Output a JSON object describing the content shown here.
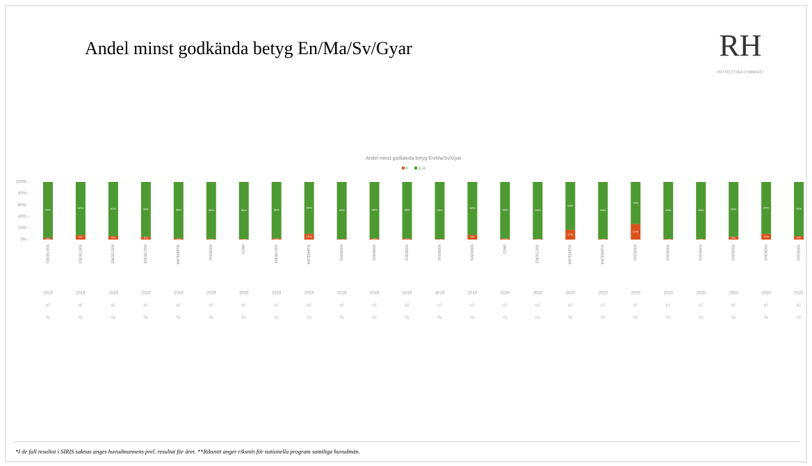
{
  "header": {
    "title": "Andel minst godkända betyg En/Ma/Sv/Gyar",
    "logo": "RH",
    "logo_sub": "HVITFELDTSKA GYMNASIET"
  },
  "chart_data": {
    "type": "stacked_bar",
    "title": "Andel minst godkända betyg En/Ma/Sv/Gyar",
    "categories": [
      "ENGELSKA",
      "ENGELSKA",
      "ENGELSKA",
      "ENGELSKA",
      "MATEMATIK",
      "SVENSKA",
      "GYAR",
      "ENGELSKA",
      "MATEMATIK",
      "SVENSKA",
      "SVENSKA",
      "SVENSKA",
      "SVENSKA",
      "SVENSKA",
      "GYAR",
      "ENGELSKA",
      "MATEMATIK",
      "MATEMATIK",
      "SVENSKA",
      "SVENSKA",
      "SVENSKA",
      "SVENSKA",
      "SVENSKA",
      "SVENSKA"
    ],
    "years": [
      "2019",
      "2019",
      "2019",
      "2019",
      "2019",
      "2019",
      "2019",
      "2019",
      "2019",
      "2019",
      "2019",
      "2019",
      "2019",
      "2019",
      "2020",
      "2020",
      "2020",
      "2020",
      "2020",
      "2020",
      "2020",
      "2020",
      "2020",
      "2020"
    ],
    "row2": [
      "HT",
      "HT",
      "HT",
      "HT",
      "HT",
      "HT",
      "HT",
      "HT",
      "HT",
      "HT",
      "HT",
      "HT",
      "HT",
      "HT",
      "HT",
      "HT",
      "HT",
      "HT",
      "HT",
      "HT",
      "HT",
      "HT",
      "HT",
      "HT"
    ],
    "row3": [
      "Gy",
      "Gy",
      "Gy",
      "Gy",
      "Gy",
      "Gy",
      "Gy",
      "Gy",
      "Gy",
      "Gy",
      "Gy",
      "Gy",
      "Gy",
      "Gy",
      "Gy",
      "Gy",
      "Gy",
      "Gy",
      "Gy",
      "Gy",
      "Gy",
      "Gy",
      "Gy",
      "Gy"
    ],
    "series": [
      {
        "name": "F",
        "color": "#d9531e",
        "values": [
          3,
          8,
          6,
          5,
          2,
          1,
          1,
          2,
          10,
          1,
          2,
          2,
          1,
          8,
          2,
          1,
          17,
          1,
          27,
          1,
          1,
          5,
          10,
          6
        ],
        "value_labels": [
          "3%",
          "8%",
          "6%",
          "5%",
          "2%",
          "1%",
          "1%",
          "2%",
          "10%",
          "1%",
          "2%",
          "2%",
          "1%",
          "8%",
          "2%",
          "1%",
          "17%",
          "1%",
          "27%",
          "1%",
          "1%",
          "5%",
          "10%",
          "6%"
        ]
      },
      {
        "name": "E-A",
        "color": "#4e9a32",
        "values": [
          97,
          92,
          94,
          95,
          98,
          99,
          99,
          98,
          90,
          99,
          98,
          98,
          99,
          92,
          98,
          99,
          83,
          99,
          73,
          99,
          99,
          95,
          90,
          94
        ],
        "value_labels": [
          "97%",
          "92%",
          "94%",
          "95%",
          "98%",
          "99%",
          "99%",
          "98%",
          "90%",
          "99%",
          "98%",
          "98%",
          "99%",
          "92%",
          "98%",
          "99%",
          "83%",
          "99%",
          "73%",
          "99%",
          "99%",
          "95%",
          "90%",
          "94%"
        ]
      }
    ],
    "ylim": [
      0,
      100
    ],
    "yticks": [
      {
        "value": 0,
        "label": "0%"
      },
      {
        "value": 20,
        "label": "20%"
      },
      {
        "value": 40,
        "label": "40%"
      },
      {
        "value": 60,
        "label": "60%"
      },
      {
        "value": 80,
        "label": "80%"
      },
      {
        "value": 100,
        "label": "100%"
      }
    ]
  },
  "footer": "*I de fall resultat i SIRIS saknas anges huvudmannens prel. resultat för året. **Riksnitt anger riksnitt för nationella program samtliga huvudmän."
}
